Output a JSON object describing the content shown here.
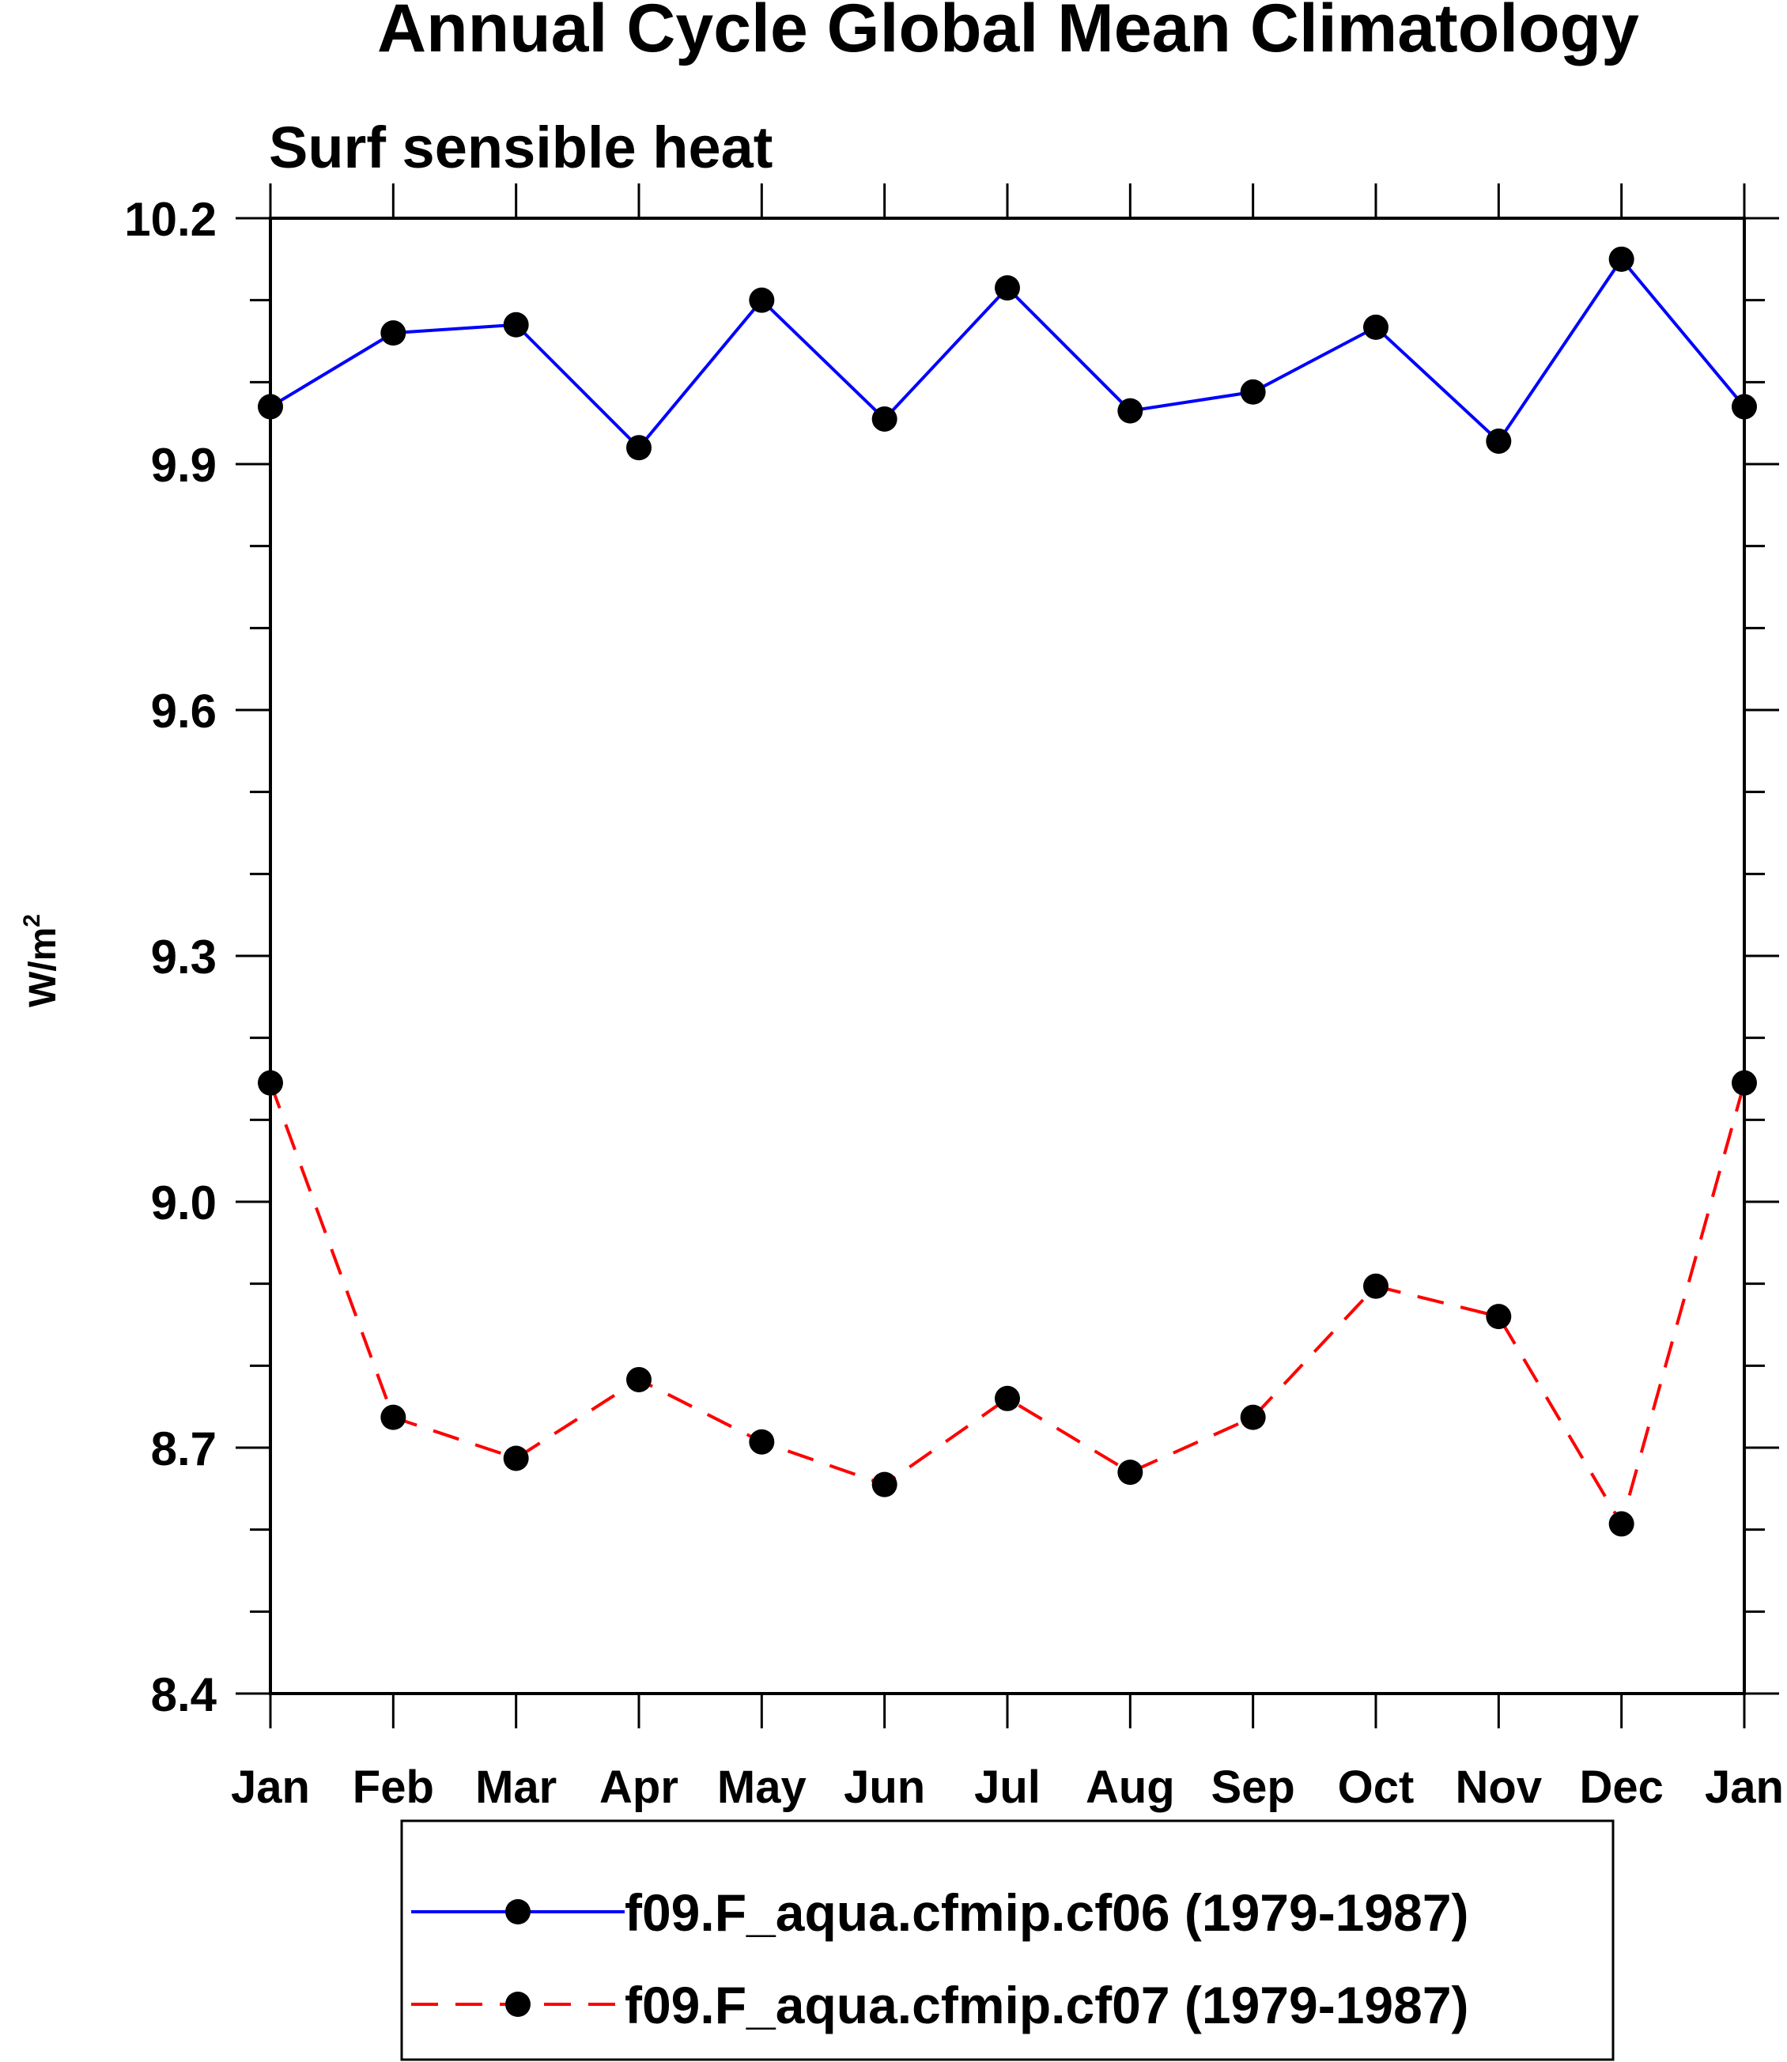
{
  "chart_data": {
    "type": "line",
    "title": "Annual Cycle Global Mean Climatology",
    "subtitle": "Surf sensible heat",
    "ylabel": "W/m",
    "ylabel_superscript": "2",
    "xlabel": "",
    "categories": [
      "Jan",
      "Feb",
      "Mar",
      "Apr",
      "May",
      "Jun",
      "Jul",
      "Aug",
      "Sep",
      "Oct",
      "Nov",
      "Dec",
      "Jan"
    ],
    "ylim": [
      8.4,
      10.2
    ],
    "yticks": [
      "8.4",
      "8.7",
      "9.0",
      "9.3",
      "9.6",
      "9.9",
      "10.2"
    ],
    "ytick_values": [
      8.4,
      8.7,
      9.0,
      9.3,
      9.6,
      9.9,
      10.2
    ],
    "grid": false,
    "legend_position": "bottom",
    "series": [
      {
        "name": "f09.F_aqua.cfmip.cf06 (1979-1987)",
        "color": "#0000ff",
        "dash": "solid",
        "values": [
          9.97,
          10.06,
          10.07,
          9.92,
          10.1,
          9.955,
          10.115,
          9.965,
          9.988,
          10.067,
          9.928,
          10.15,
          9.97
        ]
      },
      {
        "name": "f09.F_aqua.cfmip.cf07 (1979-1987)",
        "color": "#ff0000",
        "dash": "dashed",
        "values": [
          9.145,
          8.737,
          8.687,
          8.783,
          8.707,
          8.655,
          8.76,
          8.67,
          8.737,
          8.897,
          8.86,
          8.607,
          9.145
        ]
      }
    ]
  }
}
